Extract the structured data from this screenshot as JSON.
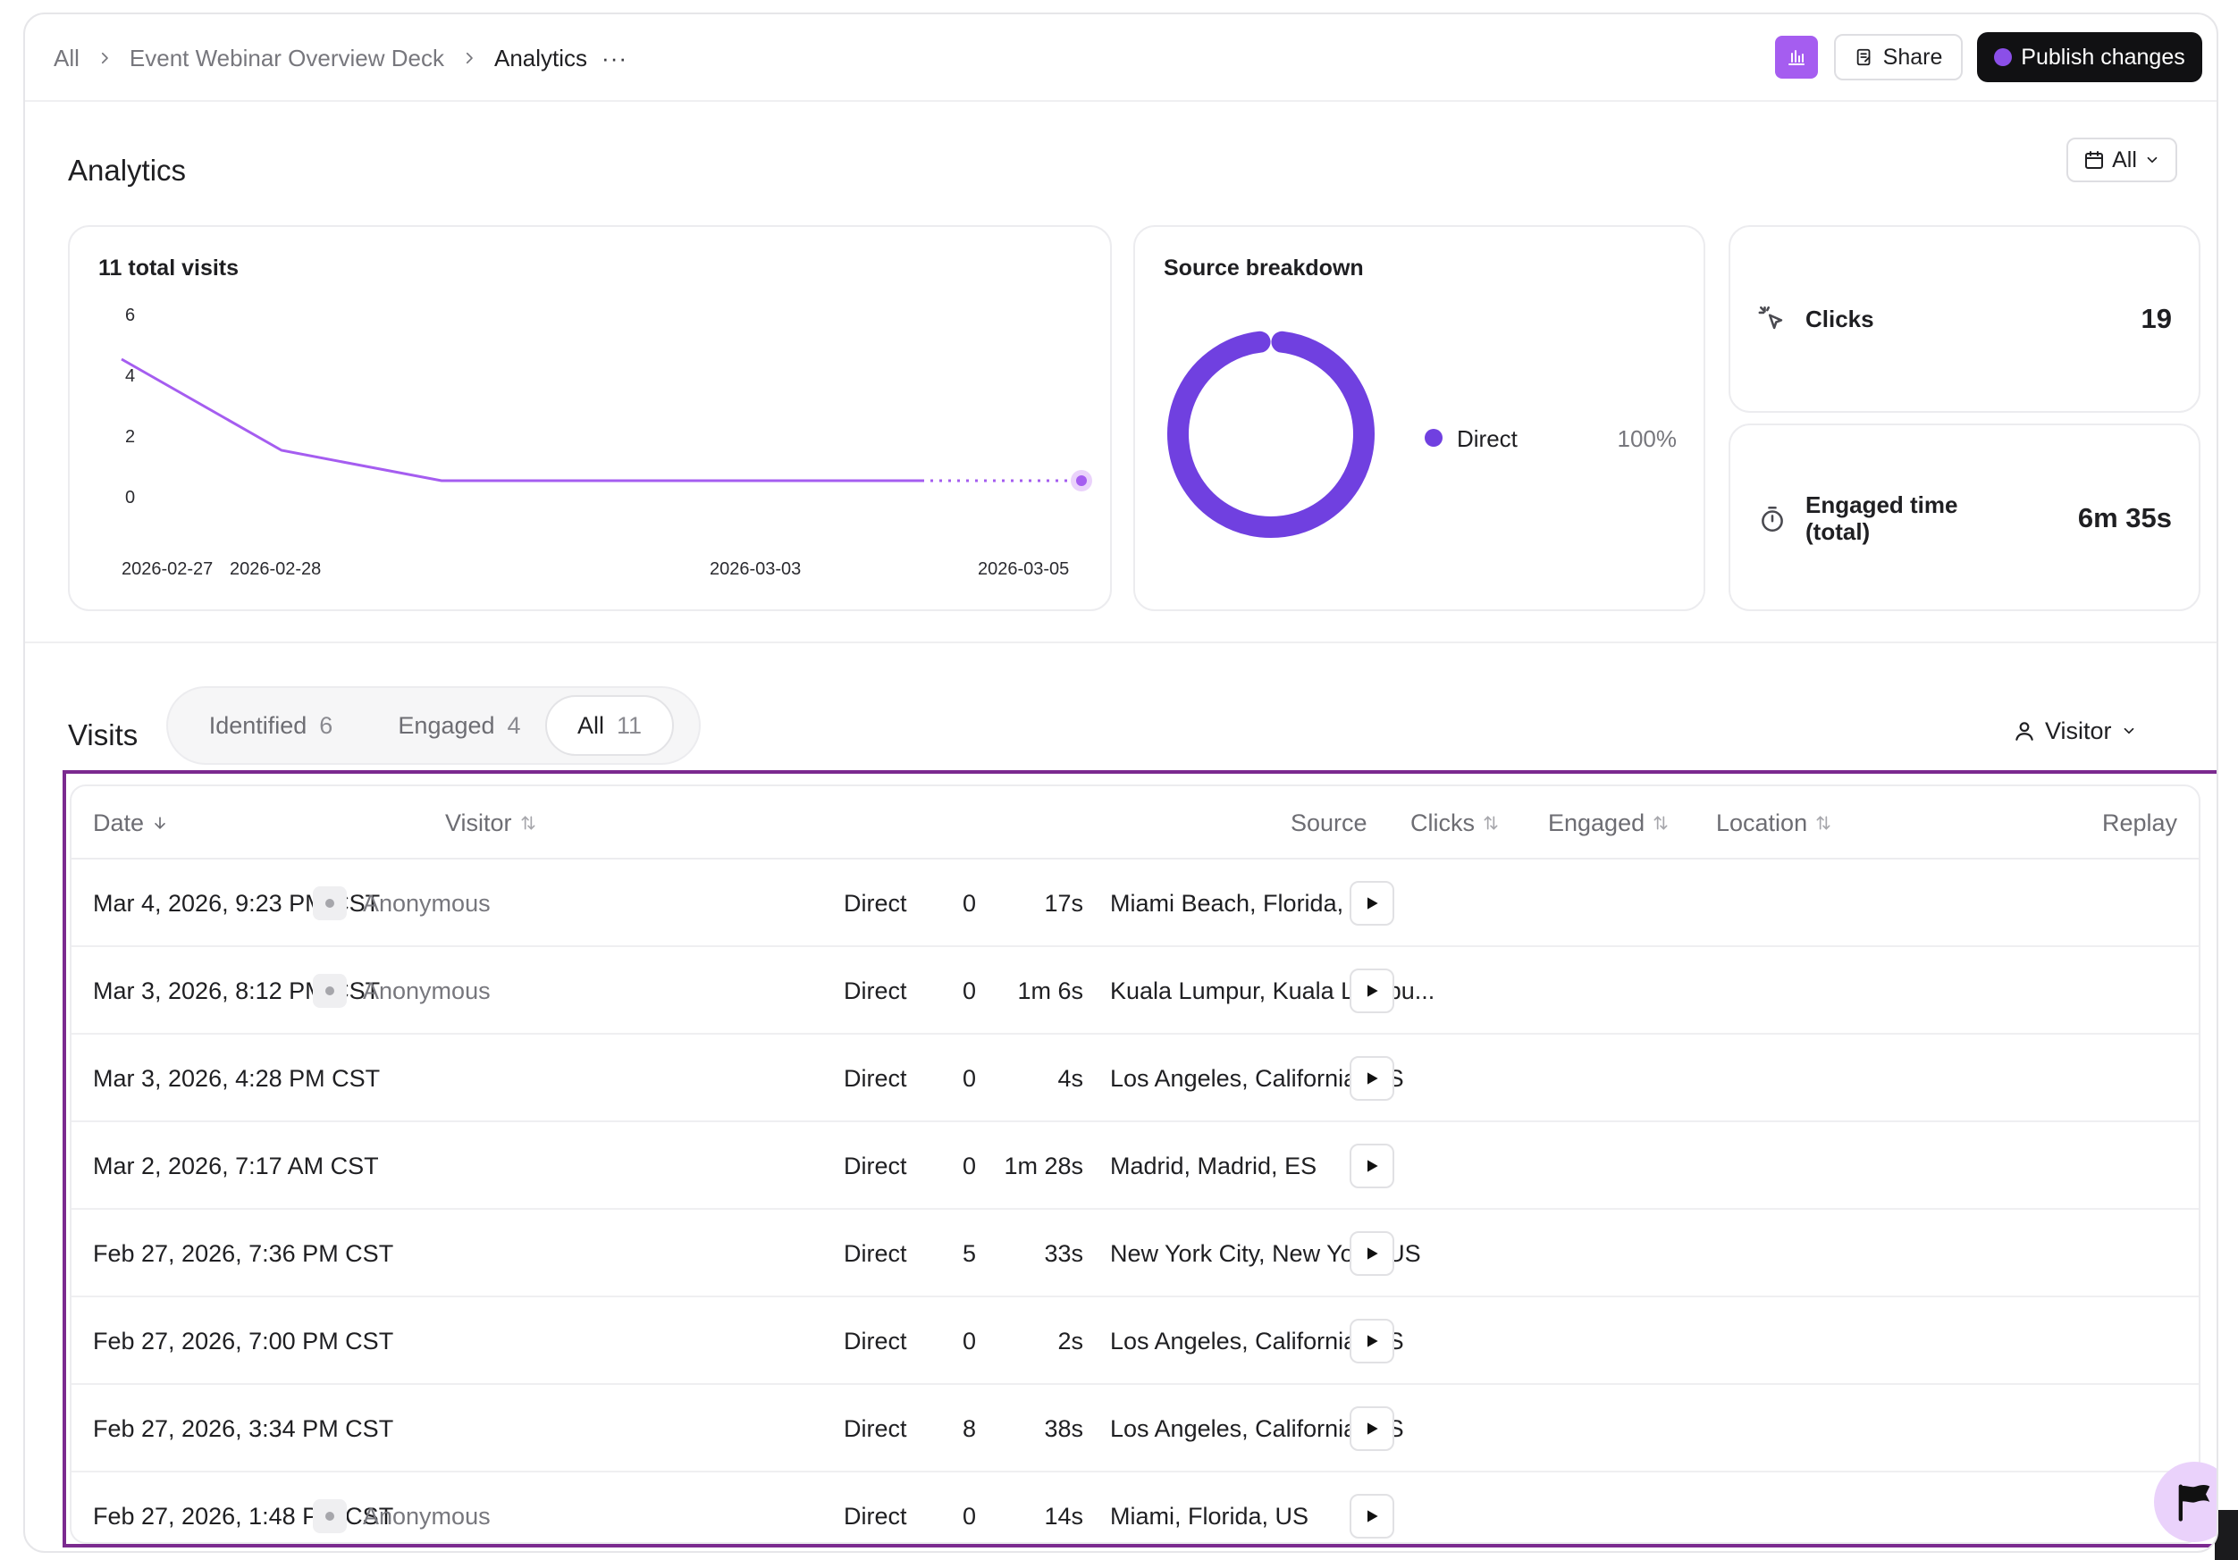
{
  "breadcrumb": {
    "root": "All",
    "deck": "Event Webinar Overview Deck",
    "current": "Analytics",
    "more": "···"
  },
  "header": {
    "share_label": "Share",
    "publish_label": "Publish changes",
    "accent": "#a55df0"
  },
  "analytics": {
    "title": "Analytics",
    "range_label": "All"
  },
  "visits_chart": {
    "title": "11 total visits",
    "chart_data": {
      "type": "line",
      "x": [
        "2026-02-27",
        "2026-02-28",
        "2026-03-01",
        "2026-03-02",
        "2026-03-03",
        "2026-03-04",
        "2026-03-05"
      ],
      "values": [
        5,
        2,
        1,
        1,
        1,
        1,
        1
      ],
      "projected_from_index": 5,
      "xticks": [
        "2026-02-27",
        "2026-02-28",
        "2026-03-03",
        "2026-03-05"
      ],
      "yticks": [
        "6",
        "4",
        "2",
        "0"
      ],
      "ylim": [
        0,
        6
      ],
      "color": "#a55df0"
    }
  },
  "source_breakdown": {
    "title": "Source breakdown",
    "chart_data": {
      "type": "pie",
      "slices": [
        {
          "label": "Direct",
          "value": 100,
          "display": "100%"
        }
      ],
      "color": "#7040e0"
    }
  },
  "stats": {
    "clicks": {
      "label": "Clicks",
      "value": "19"
    },
    "engaged": {
      "label_line1": "Engaged time",
      "label_line2": "(total)",
      "value": "6m 35s"
    }
  },
  "visits": {
    "title": "Visits",
    "tabs": [
      {
        "label": "Identified",
        "count": "6"
      },
      {
        "label": "Engaged",
        "count": "4"
      },
      {
        "label": "All",
        "count": "11"
      }
    ],
    "visitor_filter": "Visitor",
    "columns": {
      "date": "Date",
      "visitor": "Visitor",
      "source": "Source",
      "clicks": "Clicks",
      "engaged": "Engaged",
      "location": "Location",
      "replay": "Replay"
    },
    "rows": [
      {
        "date": "Mar 4, 2026, 9:23 PM CST",
        "visitor": "Anonymous",
        "source": "Direct",
        "clicks": "0",
        "engaged": "17s",
        "location": "Miami Beach, Florida, US"
      },
      {
        "date": "Mar 3, 2026, 8:12 PM CST",
        "visitor": "Anonymous",
        "source": "Direct",
        "clicks": "0",
        "engaged": "1m 6s",
        "location": "Kuala Lumpur, Kuala Lumpu..."
      },
      {
        "date": "Mar 3, 2026, 4:28 PM CST",
        "visitor": "",
        "source": "Direct",
        "clicks": "0",
        "engaged": "4s",
        "location": "Los Angeles, California, US"
      },
      {
        "date": "Mar 2, 2026, 7:17 AM CST",
        "visitor": "",
        "source": "Direct",
        "clicks": "0",
        "engaged": "1m 28s",
        "location": "Madrid, Madrid, ES"
      },
      {
        "date": "Feb 27, 2026, 7:36 PM CST",
        "visitor": "",
        "source": "Direct",
        "clicks": "5",
        "engaged": "33s",
        "location": "New York City, New York, US"
      },
      {
        "date": "Feb 27, 2026, 7:00 PM CST",
        "visitor": "",
        "source": "Direct",
        "clicks": "0",
        "engaged": "2s",
        "location": "Los Angeles, California, US"
      },
      {
        "date": "Feb 27, 2026, 3:34 PM CST",
        "visitor": "",
        "source": "Direct",
        "clicks": "8",
        "engaged": "38s",
        "location": "Los Angeles, California, US"
      },
      {
        "date": "Feb 27, 2026, 1:48 PM CST",
        "visitor": "Anonymous",
        "source": "Direct",
        "clicks": "0",
        "engaged": "14s",
        "location": "Miami, Florida, US"
      }
    ]
  }
}
